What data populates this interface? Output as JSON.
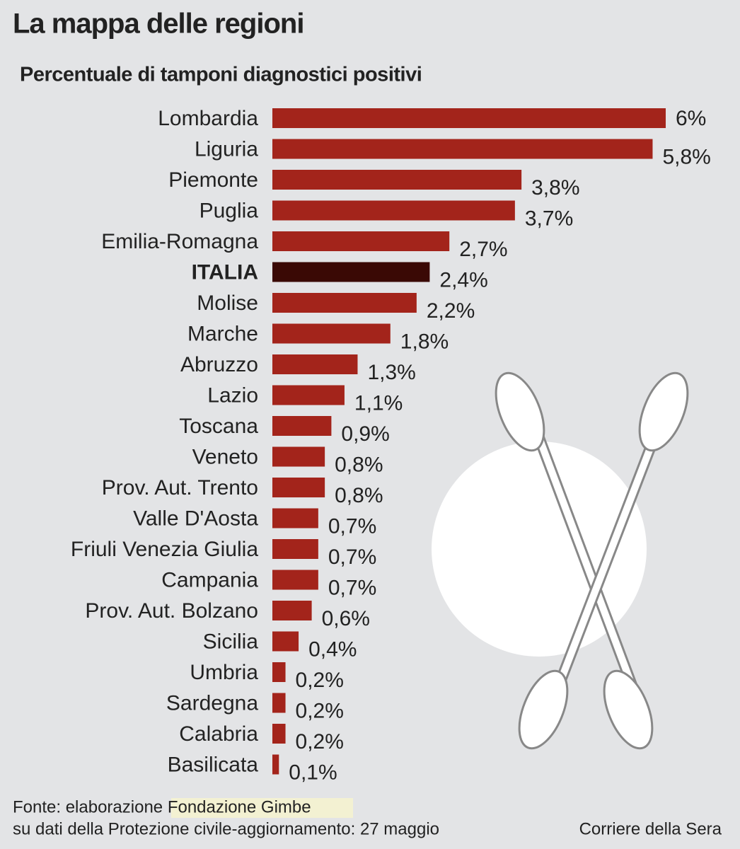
{
  "chart_data": {
    "type": "bar",
    "orientation": "horizontal",
    "title": "La mappa delle regioni",
    "subtitle": "Percentuale di tamponi diagnostici positivi",
    "categories": [
      "Lombardia",
      "Liguria",
      "Piemonte",
      "Puglia",
      "Emilia-Romagna",
      "ITALIA",
      "Molise",
      "Marche",
      "Abruzzo",
      "Lazio",
      "Toscana",
      "Veneto",
      "Prov. Aut. Trento",
      "Valle D'Aosta",
      "Friuli Venezia Giulia",
      "Campania",
      "Prov. Aut. Bolzano",
      "Sicilia",
      "Umbria",
      "Sardegna",
      "Calabria",
      "Basilicata"
    ],
    "values": [
      6,
      5.8,
      3.8,
      3.7,
      2.7,
      2.4,
      2.2,
      1.8,
      1.3,
      1.1,
      0.9,
      0.8,
      0.8,
      0.7,
      0.7,
      0.7,
      0.6,
      0.4,
      0.2,
      0.2,
      0.2,
      0.1
    ],
    "value_labels": [
      "6%",
      "5,8%",
      "3,8%",
      "3,7%",
      "2,7%",
      "2,4%",
      "2,2%",
      "1,8%",
      "1,3%",
      "1,1%",
      "0,9%",
      "0,8%",
      "0,8%",
      "0,7%",
      "0,7%",
      "0,7%",
      "0,6%",
      "0,4%",
      "0,2%",
      "0,2%",
      "0,2%",
      "0,1%"
    ],
    "color": "#a3241b",
    "colors": [
      "#a3241b",
      "#a3241b",
      "#a3241b",
      "#a3241b",
      "#a3241b",
      "#3a0905",
      "#a3241b",
      "#a3241b",
      "#a3241b",
      "#a3241b",
      "#a3241b",
      "#a3241b",
      "#a3241b",
      "#a3241b",
      "#a3241b",
      "#a3241b",
      "#a3241b",
      "#a3241b",
      "#a3241b",
      "#a3241b",
      "#a3241b",
      "#a3241b"
    ],
    "source": [
      "Fonte: elaborazione Fondazione Gimbe",
      "su dati della Protezione civile-aggiornamento: 27 maggio"
    ],
    "credit": "Corriere della Sera"
  }
}
